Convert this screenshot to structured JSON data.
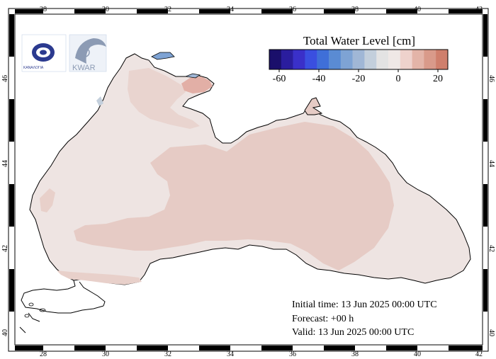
{
  "colorbar": {
    "title": "Total Water Level [cm]",
    "tick_labels": [
      "-60",
      "-40",
      "-20",
      "0",
      "20"
    ],
    "colors": [
      "#1a0f6b",
      "#2a1d9e",
      "#3a30c9",
      "#3a4fe0",
      "#3f6fd8",
      "#5a8bd3",
      "#7ea3d4",
      "#a0b7d6",
      "#c3cfdc",
      "#e3e3e3",
      "#efe8e6",
      "#eed2cc",
      "#e3b4a8",
      "#d99a8a",
      "#cf7f6c"
    ]
  },
  "axes": {
    "x_ticks": [
      "28",
      "30",
      "32",
      "34",
      "36",
      "38",
      "40",
      "42"
    ],
    "y_ticks": [
      "40",
      "42",
      "44",
      "46"
    ]
  },
  "info": {
    "initial_time": "Initial time: 13 Jun 2025 00:00 UTC",
    "forecast": "Forecast: +00 h",
    "valid": "Valid: 13 Jun 2025 00:00 UTC"
  },
  "logos": {
    "left_text": "ΚΑΝΑΛΟΓΙΑ",
    "right_text": "KWAR"
  },
  "palette": {
    "sea_base": "#eee4e2",
    "sea_warm": "#e6cbc5",
    "sea_warmer": "#e2afa6",
    "land": "#ffffff",
    "coast": "#000000"
  }
}
